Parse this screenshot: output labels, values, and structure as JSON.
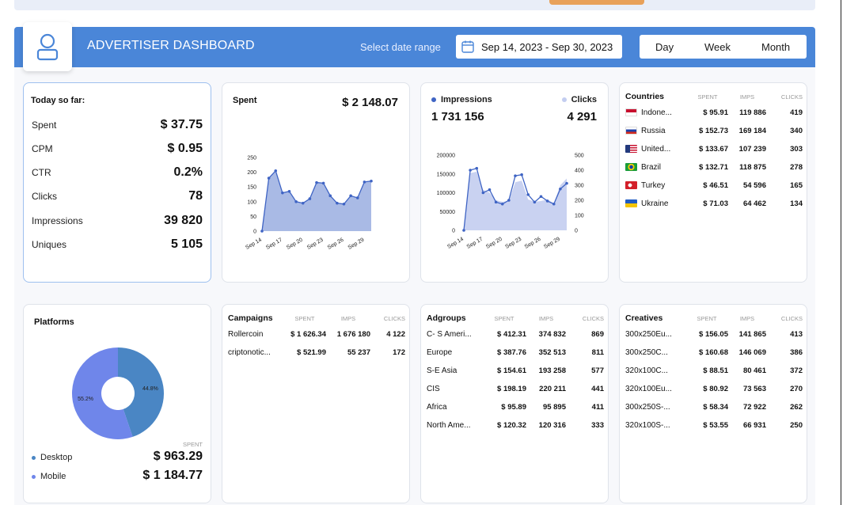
{
  "header": {
    "title": "ADVERTISER DASHBOARD",
    "date_label": "Select date range",
    "date_range": "Sep 14, 2023 - Sep 30, 2023",
    "periods": [
      "Day",
      "Week",
      "Month"
    ],
    "color": "#4a86d8"
  },
  "today": {
    "title": "Today so far:",
    "rows": [
      {
        "label": "Spent",
        "value": "$ 37.75"
      },
      {
        "label": "CPM",
        "value": "$ 0.95"
      },
      {
        "label": "CTR",
        "value": "0.2%"
      },
      {
        "label": "Clicks",
        "value": "78"
      },
      {
        "label": "Impressions",
        "value": "39 820"
      },
      {
        "label": "Uniques",
        "value": "5 105"
      }
    ]
  },
  "spent_card": {
    "title": "Spent",
    "total": "$ 2 148.07"
  },
  "imp_card": {
    "impressions_label": "Impressions",
    "impressions_total": "1 731 156",
    "clicks_label": "Clicks",
    "clicks_total": "4 291"
  },
  "chart_data": [
    {
      "type": "area",
      "x": [
        "Sep 14",
        "Sep 15",
        "Sep 16",
        "Sep 17",
        "Sep 18",
        "Sep 19",
        "Sep 20",
        "Sep 21",
        "Sep 22",
        "Sep 23",
        "Sep 24",
        "Sep 25",
        "Sep 26",
        "Sep 27",
        "Sep 28",
        "Sep 29",
        "Sep 30"
      ],
      "x_tick_labels": [
        "Sep 14",
        "Sep 17",
        "Sep 20",
        "Sep 23",
        "Sep 26",
        "Sep 29"
      ],
      "values": [
        0,
        180,
        205,
        130,
        135,
        100,
        95,
        110,
        165,
        163,
        120,
        95,
        92,
        120,
        113,
        167,
        170
      ],
      "ylim": [
        0,
        250
      ],
      "y_ticks": [
        0,
        50,
        100,
        150,
        200,
        250
      ],
      "color": "#3f64c4",
      "fill": "#9aaee0"
    },
    {
      "type": "area",
      "x": [
        "Sep 14",
        "Sep 15",
        "Sep 16",
        "Sep 17",
        "Sep 18",
        "Sep 19",
        "Sep 20",
        "Sep 21",
        "Sep 22",
        "Sep 23",
        "Sep 24",
        "Sep 25",
        "Sep 26",
        "Sep 27",
        "Sep 28",
        "Sep 29",
        "Sep 30"
      ],
      "x_tick_labels": [
        "Sep 14",
        "Sep 17",
        "Sep 20",
        "Sep 23",
        "Sep 26",
        "Sep 29"
      ],
      "series": [
        {
          "name": "Impressions",
          "axis": "left",
          "values": [
            0,
            160000,
            165000,
            100000,
            108000,
            75000,
            70000,
            80000,
            145000,
            148000,
            95000,
            75000,
            90000,
            78000,
            70000,
            110000,
            125000
          ],
          "color": "#3f64c4"
        },
        {
          "name": "Clicks",
          "axis": "right",
          "values": [
            0,
            380,
            390,
            270,
            250,
            200,
            190,
            195,
            320,
            330,
            205,
            190,
            195,
            205,
            180,
            300,
            345
          ],
          "color": "#c3cdf0"
        }
      ],
      "ylim_left": [
        0,
        200000
      ],
      "y_ticks_left": [
        0,
        50000,
        100000,
        150000,
        200000
      ],
      "ylim_right": [
        0,
        500
      ],
      "y_ticks_right": [
        0,
        100,
        200,
        300,
        400,
        500
      ]
    },
    {
      "type": "pie",
      "title": "Platforms",
      "slices": [
        {
          "name": "Desktop",
          "value": 44.8,
          "label": "44.8%",
          "color": "#4a86c4"
        },
        {
          "name": "Mobile",
          "value": 55.2,
          "label": "55.2%",
          "color": "#6f86ea"
        }
      ]
    }
  ],
  "countries": {
    "title": "Countries",
    "columns": [
      "SPENT",
      "IMPS",
      "CLICKS"
    ],
    "rows": [
      {
        "name": "Indone...",
        "flag": "indonesia",
        "spent": "$ 95.91",
        "imps": "119 886",
        "clicks": "419"
      },
      {
        "name": "Russia",
        "flag": "russia",
        "spent": "$ 152.73",
        "imps": "169 184",
        "clicks": "340"
      },
      {
        "name": "United...",
        "flag": "usa",
        "spent": "$ 133.67",
        "imps": "107 239",
        "clicks": "303"
      },
      {
        "name": "Brazil",
        "flag": "brazil",
        "spent": "$ 132.71",
        "imps": "118 875",
        "clicks": "278"
      },
      {
        "name": "Turkey",
        "flag": "turkey",
        "spent": "$ 46.51",
        "imps": "54 596",
        "clicks": "165"
      },
      {
        "name": "Ukraine",
        "flag": "ukraine",
        "spent": "$ 71.03",
        "imps": "64 462",
        "clicks": "134"
      }
    ]
  },
  "platforms": {
    "title": "Platforms",
    "spent_label": "SPENT",
    "rows": [
      {
        "name": "Desktop",
        "value": "$ 963.29",
        "color": "#4a86c4"
      },
      {
        "name": "Mobile",
        "value": "$ 1 184.77",
        "color": "#6f86ea"
      }
    ]
  },
  "campaigns": {
    "title": "Campaigns",
    "columns": [
      "SPENT",
      "IMPS",
      "CLICKS"
    ],
    "rows": [
      {
        "name": "Rollercoin",
        "spent": "$ 1 626.34",
        "imps": "1 676 180",
        "clicks": "4 122"
      },
      {
        "name": "criptonotic...",
        "spent": "$ 521.99",
        "imps": "55 237",
        "clicks": "172"
      }
    ]
  },
  "adgroups": {
    "title": "Adgroups",
    "columns": [
      "SPENT",
      "IMPS",
      "CLICKS"
    ],
    "rows": [
      {
        "name": "C- S Ameri...",
        "spent": "$ 412.31",
        "imps": "374 832",
        "clicks": "869"
      },
      {
        "name": "Europe",
        "spent": "$ 387.76",
        "imps": "352 513",
        "clicks": "811"
      },
      {
        "name": "S-E Asia",
        "spent": "$ 154.61",
        "imps": "193 258",
        "clicks": "577"
      },
      {
        "name": "CIS",
        "spent": "$ 198.19",
        "imps": "220 211",
        "clicks": "441"
      },
      {
        "name": "Africa",
        "spent": "$ 95.89",
        "imps": "95 895",
        "clicks": "411"
      },
      {
        "name": "North Ame...",
        "spent": "$ 120.32",
        "imps": "120 316",
        "clicks": "333"
      }
    ]
  },
  "creatives": {
    "title": "Creatives",
    "columns": [
      "SPENT",
      "IMPS",
      "CLICKS"
    ],
    "rows": [
      {
        "name": "300x250Eu...",
        "spent": "$ 156.05",
        "imps": "141 865",
        "clicks": "413"
      },
      {
        "name": "300x250C...",
        "spent": "$ 160.68",
        "imps": "146 069",
        "clicks": "386"
      },
      {
        "name": "320x100C...",
        "spent": "$ 88.51",
        "imps": "80 461",
        "clicks": "372"
      },
      {
        "name": "320x100Eu...",
        "spent": "$ 80.92",
        "imps": "73 563",
        "clicks": "270"
      },
      {
        "name": "300x250S-...",
        "spent": "$ 58.34",
        "imps": "72 922",
        "clicks": "262"
      },
      {
        "name": "320x100S-...",
        "spent": "$ 53.55",
        "imps": "66 931",
        "clicks": "250"
      }
    ]
  }
}
